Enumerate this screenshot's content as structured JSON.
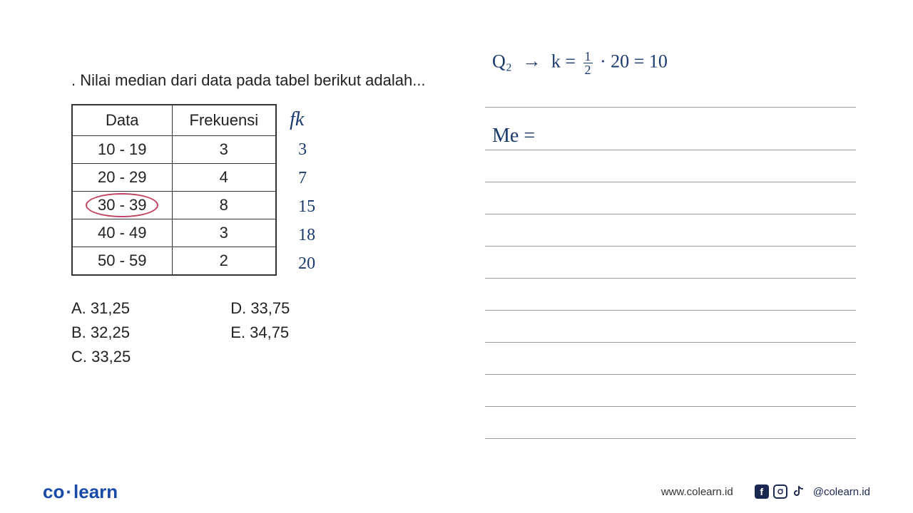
{
  "question": ". Nilai median dari data pada tabel berikut adalah...",
  "table": {
    "headers": [
      "Data",
      "Frekuensi"
    ],
    "rows": [
      {
        "range": "10 - 19",
        "freq": "3",
        "fk": "3",
        "circled": false
      },
      {
        "range": "20 - 29",
        "freq": "4",
        "fk": "7",
        "circled": false
      },
      {
        "range": "30 - 39",
        "freq": "8",
        "fk": "15",
        "circled": true
      },
      {
        "range": "40 - 49",
        "freq": "3",
        "fk": "18",
        "circled": false
      },
      {
        "range": "50 - 59",
        "freq": "2",
        "fk": "20",
        "circled": false
      }
    ],
    "fk_header": "fk"
  },
  "options": {
    "col1": [
      {
        "label": "A.",
        "value": "31,25"
      },
      {
        "label": "B.",
        "value": "32,25"
      },
      {
        "label": "C.",
        "value": "33,25"
      }
    ],
    "col2": [
      {
        "label": "D.",
        "value": "33,75"
      },
      {
        "label": "E.",
        "value": "34,75"
      }
    ]
  },
  "handwriting": {
    "line1_q2": "Q₂",
    "line1_arrow": "→",
    "line1_k": "k =",
    "line1_frac_num": "1",
    "line1_frac_den": "2",
    "line1_rest": "· 20 = 10",
    "line2": "Me ="
  },
  "ruled": {
    "line_positions": [
      100,
      160,
      205,
      250,
      295,
      340,
      385,
      430,
      475,
      520,
      565
    ],
    "line_color": "#9a9a9a"
  },
  "footer": {
    "logo_part1": "co",
    "logo_dot": "·",
    "logo_part2": "learn",
    "url": "www.colearn.id",
    "handle": "@colearn.id"
  },
  "colors": {
    "handwriting": "#1a3a6e",
    "circle": "#c04060",
    "logo": "#1a4aa8",
    "social": "#1a2850"
  }
}
